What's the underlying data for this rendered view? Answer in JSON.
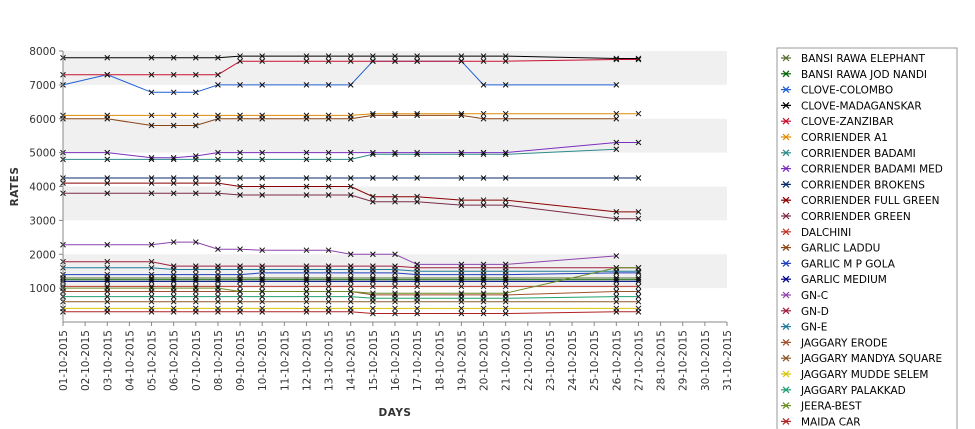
{
  "chart_data": {
    "type": "line",
    "xlabel": "DAYS",
    "ylabel": "RATES",
    "ylim": [
      0,
      8000
    ],
    "yticks": [
      1000,
      2000,
      3000,
      4000,
      5000,
      6000,
      7000,
      8000
    ],
    "grid": "alternating horizontal bands",
    "legend_position": "right",
    "x": [
      "01-10-2015",
      "02-10-2015",
      "03-10-2015",
      "04-10-2015",
      "05-10-2015",
      "06-10-2015",
      "07-10-2015",
      "08-10-2015",
      "09-10-2015",
      "10-10-2015",
      "11-10-2015",
      "12-10-2015",
      "13-10-2015",
      "14-10-2015",
      "15-10-2015",
      "16-10-2015",
      "17-10-2015",
      "18-10-2015",
      "19-10-2015",
      "20-10-2015",
      "21-10-2015",
      "22-10-2015",
      "23-10-2015",
      "24-10-2015",
      "25-10-2015",
      "26-10-2015",
      "27-10-2015",
      "28-10-2015",
      "29-10-2015",
      "30-10-2015",
      "31-10-2015"
    ],
    "series": [
      {
        "name": "BANSI RAWA ELEPHANT",
        "color": "#556b2f",
        "values": [
          1300,
          null,
          1300,
          null,
          1300,
          1300,
          1300,
          1300,
          1300,
          1300,
          null,
          1300,
          1300,
          1300,
          1300,
          1300,
          1300,
          null,
          1300,
          1300,
          1300,
          null,
          null,
          null,
          null,
          1300,
          1300,
          null,
          null,
          null,
          null
        ]
      },
      {
        "name": "BANSI RAWA JOD NANDI",
        "color": "#006400",
        "values": [
          1250,
          null,
          1250,
          null,
          1250,
          1250,
          1250,
          1250,
          1250,
          1250,
          null,
          1250,
          1250,
          1250,
          1250,
          1250,
          1250,
          null,
          1250,
          1250,
          1250,
          null,
          null,
          null,
          null,
          1250,
          1250,
          null,
          null,
          null,
          null
        ]
      },
      {
        "name": "CLOVE-COLOMBO",
        "color": "#1f5fd6",
        "values": [
          7000,
          null,
          7300,
          null,
          6780,
          6780,
          6780,
          7000,
          7000,
          7000,
          null,
          7000,
          7000,
          7000,
          7700,
          7700,
          7700,
          null,
          7700,
          7000,
          7000,
          null,
          null,
          null,
          null,
          7000,
          null,
          null,
          null,
          null,
          null
        ]
      },
      {
        "name": "CLOVE-MADAGANSKAR",
        "color": "#000000",
        "values": [
          7800,
          null,
          7800,
          null,
          7800,
          7800,
          7800,
          7800,
          7850,
          7850,
          null,
          7850,
          7850,
          7850,
          7850,
          7850,
          7850,
          null,
          7850,
          7850,
          7850,
          null,
          null,
          null,
          null,
          7780,
          7780,
          null,
          null,
          null,
          null
        ]
      },
      {
        "name": "CLOVE-ZANZIBAR",
        "color": "#c8102e",
        "values": [
          7300,
          null,
          7300,
          null,
          7300,
          7300,
          7300,
          7300,
          7700,
          7700,
          null,
          7700,
          7700,
          7700,
          7700,
          7700,
          7700,
          null,
          7700,
          7700,
          7700,
          null,
          null,
          null,
          null,
          7750,
          7750,
          null,
          null,
          null,
          null
        ]
      },
      {
        "name": "CORRIENDER A1",
        "color": "#e08a00",
        "values": [
          6100,
          null,
          6100,
          null,
          6100,
          6100,
          6100,
          6100,
          6100,
          6100,
          null,
          6100,
          6100,
          6100,
          6150,
          6150,
          6150,
          null,
          6150,
          6150,
          6150,
          null,
          null,
          null,
          null,
          6150,
          6150,
          null,
          null,
          null,
          null
        ]
      },
      {
        "name": "CORRIENDER BADAMI",
        "color": "#2e8b8b",
        "values": [
          4800,
          null,
          4800,
          null,
          4800,
          4800,
          4800,
          4800,
          4800,
          4800,
          null,
          4800,
          4800,
          4800,
          4950,
          4950,
          4950,
          null,
          4950,
          4950,
          4950,
          null,
          null,
          null,
          null,
          5100,
          null,
          null,
          null,
          null,
          null
        ]
      },
      {
        "name": "CORRIENDER BADAMI MED",
        "color": "#7b2fbf",
        "values": [
          5000,
          null,
          5000,
          null,
          4850,
          4850,
          4900,
          5000,
          5000,
          5000,
          null,
          5000,
          5000,
          5000,
          5000,
          5000,
          5000,
          null,
          5000,
          5000,
          5000,
          null,
          null,
          null,
          null,
          5300,
          5300,
          null,
          null,
          null,
          null
        ]
      },
      {
        "name": "CORRIENDER BROKENS",
        "color": "#0a2a6b",
        "values": [
          4250,
          null,
          4250,
          null,
          4250,
          4250,
          4250,
          4250,
          4250,
          4250,
          null,
          4250,
          4250,
          4250,
          4250,
          4250,
          4250,
          null,
          4250,
          4250,
          4250,
          null,
          null,
          null,
          null,
          4250,
          4250,
          null,
          null,
          null,
          null
        ]
      },
      {
        "name": "CORRIENDER FULL GREEN",
        "color": "#8b0000",
        "values": [
          4100,
          null,
          4100,
          null,
          4100,
          4100,
          4100,
          4100,
          4000,
          4000,
          null,
          4000,
          4000,
          4000,
          3700,
          3700,
          3700,
          null,
          3600,
          3600,
          3600,
          null,
          null,
          null,
          null,
          3250,
          3250,
          null,
          null,
          null,
          null
        ]
      },
      {
        "name": "CORRIENDER GREEN",
        "color": "#7a2a4a",
        "values": [
          3800,
          null,
          3800,
          null,
          3800,
          3800,
          3800,
          3800,
          3750,
          3750,
          null,
          3750,
          3750,
          3750,
          3550,
          3550,
          3550,
          null,
          3450,
          3450,
          3450,
          null,
          null,
          null,
          null,
          3050,
          3050,
          null,
          null,
          null,
          null
        ]
      },
      {
        "name": "DALCHINI",
        "color": "#c0392b",
        "values": [
          1050,
          null,
          1050,
          null,
          1050,
          1050,
          1050,
          1050,
          1050,
          1050,
          null,
          1050,
          1050,
          1050,
          1050,
          1050,
          1050,
          null,
          1050,
          1050,
          1050,
          null,
          null,
          null,
          null,
          1050,
          1050,
          null,
          null,
          null,
          null
        ]
      },
      {
        "name": "GARLIC LADDU",
        "color": "#8b4513",
        "values": [
          6000,
          null,
          6000,
          null,
          5800,
          5800,
          5800,
          6000,
          6000,
          6000,
          null,
          6000,
          6000,
          6000,
          6100,
          6100,
          6100,
          null,
          6100,
          6000,
          6000,
          null,
          null,
          null,
          null,
          6000,
          null,
          null,
          null,
          null,
          null
        ]
      },
      {
        "name": "GARLIC M P GOLA",
        "color": "#1f3fbf",
        "values": [
          1400,
          null,
          1400,
          null,
          1400,
          1400,
          1400,
          1400,
          1400,
          1450,
          null,
          1450,
          1450,
          1450,
          1450,
          1450,
          1400,
          null,
          1400,
          1400,
          1400,
          null,
          null,
          null,
          null,
          1450,
          1450,
          null,
          null,
          null,
          null
        ]
      },
      {
        "name": "GARLIC MEDIUM",
        "color": "#00008b",
        "values": [
          1200,
          null,
          1200,
          null,
          1200,
          1200,
          1200,
          1200,
          1200,
          1200,
          null,
          1200,
          1200,
          1200,
          1200,
          1200,
          1200,
          null,
          1200,
          1200,
          1200,
          null,
          null,
          null,
          null,
          1200,
          1200,
          null,
          null,
          null,
          null
        ]
      },
      {
        "name": "GN-C",
        "color": "#8e44ad",
        "values": [
          2280,
          null,
          2280,
          null,
          2280,
          2360,
          2360,
          2150,
          2150,
          2120,
          null,
          2120,
          2120,
          2000,
          2000,
          2000,
          1700,
          null,
          1700,
          1700,
          1700,
          null,
          null,
          null,
          null,
          1950,
          null,
          null,
          null,
          null,
          null
        ]
      },
      {
        "name": "GN-D",
        "color": "#a02040",
        "values": [
          1780,
          null,
          1780,
          null,
          1780,
          1650,
          1650,
          1650,
          1650,
          1650,
          null,
          1650,
          1650,
          1650,
          1650,
          1650,
          1600,
          null,
          1600,
          1600,
          1600,
          null,
          null,
          null,
          null,
          1600,
          1600,
          null,
          null,
          null,
          null
        ]
      },
      {
        "name": "GN-E",
        "color": "#1f7a9a",
        "values": [
          1600,
          null,
          1600,
          null,
          1600,
          1550,
          1550,
          1550,
          1550,
          1550,
          null,
          1550,
          1550,
          1550,
          1550,
          1550,
          1500,
          null,
          1500,
          1500,
          1500,
          null,
          null,
          null,
          null,
          1500,
          1500,
          null,
          null,
          null,
          null
        ]
      },
      {
        "name": "JAGGARY ERODE",
        "color": "#a0522d",
        "values": [
          900,
          null,
          900,
          null,
          900,
          900,
          900,
          900,
          900,
          900,
          null,
          900,
          900,
          900,
          800,
          800,
          800,
          null,
          800,
          800,
          800,
          null,
          null,
          null,
          null,
          900,
          900,
          null,
          null,
          null,
          null
        ]
      },
      {
        "name": "JAGGARY MANDYA SQUARE",
        "color": "#8b5a2b",
        "values": [
          600,
          null,
          600,
          null,
          600,
          600,
          600,
          600,
          600,
          600,
          null,
          600,
          600,
          600,
          600,
          600,
          600,
          null,
          600,
          600,
          600,
          null,
          null,
          null,
          null,
          600,
          600,
          null,
          null,
          null,
          null
        ]
      },
      {
        "name": "JAGGARY MUDDE SELEM",
        "color": "#d4c400",
        "values": [
          400,
          null,
          400,
          null,
          400,
          400,
          400,
          400,
          400,
          400,
          null,
          400,
          400,
          400,
          400,
          400,
          400,
          null,
          400,
          400,
          400,
          null,
          null,
          null,
          null,
          400,
          400,
          null,
          null,
          null,
          null
        ]
      },
      {
        "name": "JAGGARY PALAKKAD",
        "color": "#20a070",
        "values": [
          750,
          null,
          750,
          null,
          750,
          750,
          750,
          750,
          750,
          750,
          null,
          750,
          750,
          750,
          700,
          700,
          700,
          null,
          700,
          700,
          700,
          null,
          null,
          null,
          null,
          750,
          750,
          null,
          null,
          null,
          null
        ]
      },
      {
        "name": "JEERA-BEST",
        "color": "#6b8e23",
        "values": [
          1000,
          null,
          1000,
          null,
          1000,
          1000,
          1000,
          1000,
          900,
          900,
          null,
          900,
          900,
          900,
          850,
          850,
          850,
          null,
          850,
          850,
          850,
          null,
          null,
          null,
          null,
          1600,
          1600,
          null,
          null,
          null,
          null
        ]
      },
      {
        "name": "MAIDA CAR",
        "color": "#b22222",
        "values": [
          300,
          null,
          300,
          null,
          300,
          300,
          300,
          300,
          300,
          300,
          null,
          300,
          300,
          300,
          250,
          250,
          250,
          null,
          250,
          250,
          250,
          null,
          null,
          null,
          null,
          300,
          300,
          null,
          null,
          null,
          null
        ]
      }
    ]
  }
}
